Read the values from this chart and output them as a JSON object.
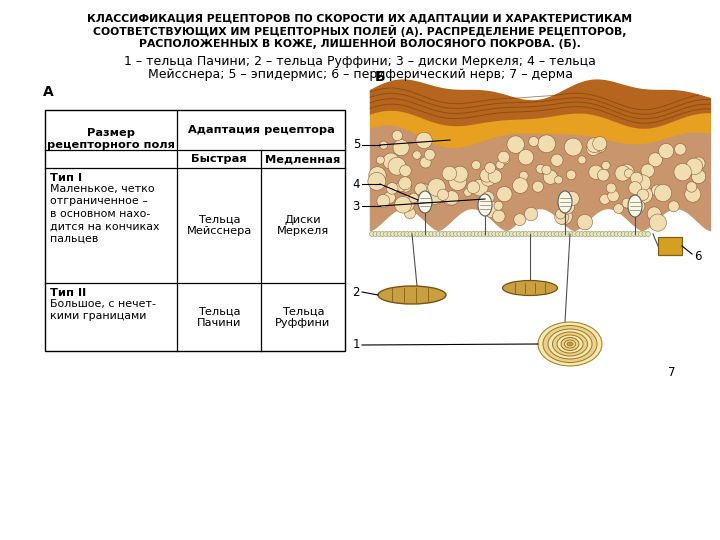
{
  "title_line1": "КЛАССИФИКАЦИЯ РЕЦЕПТОРОВ ПО СКОРОСТИ ИХ АДАПТАЦИИ И ХАРАКТЕРИСТИКАМ",
  "title_line2": "СООТВЕТСТВУЮЩИХ ИМ РЕЦЕПТОРНЫХ ПОЛЕЙ (А). РАСПРЕДЕЛЕНИЕ РЕЦЕПТОРОВ,",
  "title_line3": "РАСПОЛОЖЕННЫХ В КОЖЕ, ЛИШЕННОЙ ВОЛОСЯНОГО ПОКРОВА. (Б).",
  "subtitle_line1": "1 – тельца Пачини; 2 – тельца Руффини; 3 – диски Меркеля; 4 – тельца",
  "subtitle_line2": "Мейсснера; 5 – эпидермис; 6 – периферический нерв; 7 – дерма",
  "label_A": "А",
  "label_B": "Б",
  "col_header1": "Размер\nрецепторного поля",
  "col_header2": "Адаптация рецептора",
  "col_subheader1": "Быстрая",
  "col_subheader2": "Медленная",
  "row1_col1_bold": "Тип I",
  "row1_col1_text": "Маленькое, четко\nотграниченное –\nв основном нахо-\nдится на кончиках\nпальцев",
  "row1_col2": "Тельца\nМейсснера",
  "row1_col3": "Диски\nМеркеля",
  "row2_col1_bold": "Тип II",
  "row2_col1_text": "Большое, с нечет-\nкими границами",
  "row2_col2": "Тельца\nПачини",
  "row2_col3": "Тельца\nРуффини",
  "bg_color": "#ffffff",
  "text_color": "#000000",
  "title_fontsize": 7.8,
  "subtitle_fontsize": 9.0,
  "table_fontsize": 8.2
}
